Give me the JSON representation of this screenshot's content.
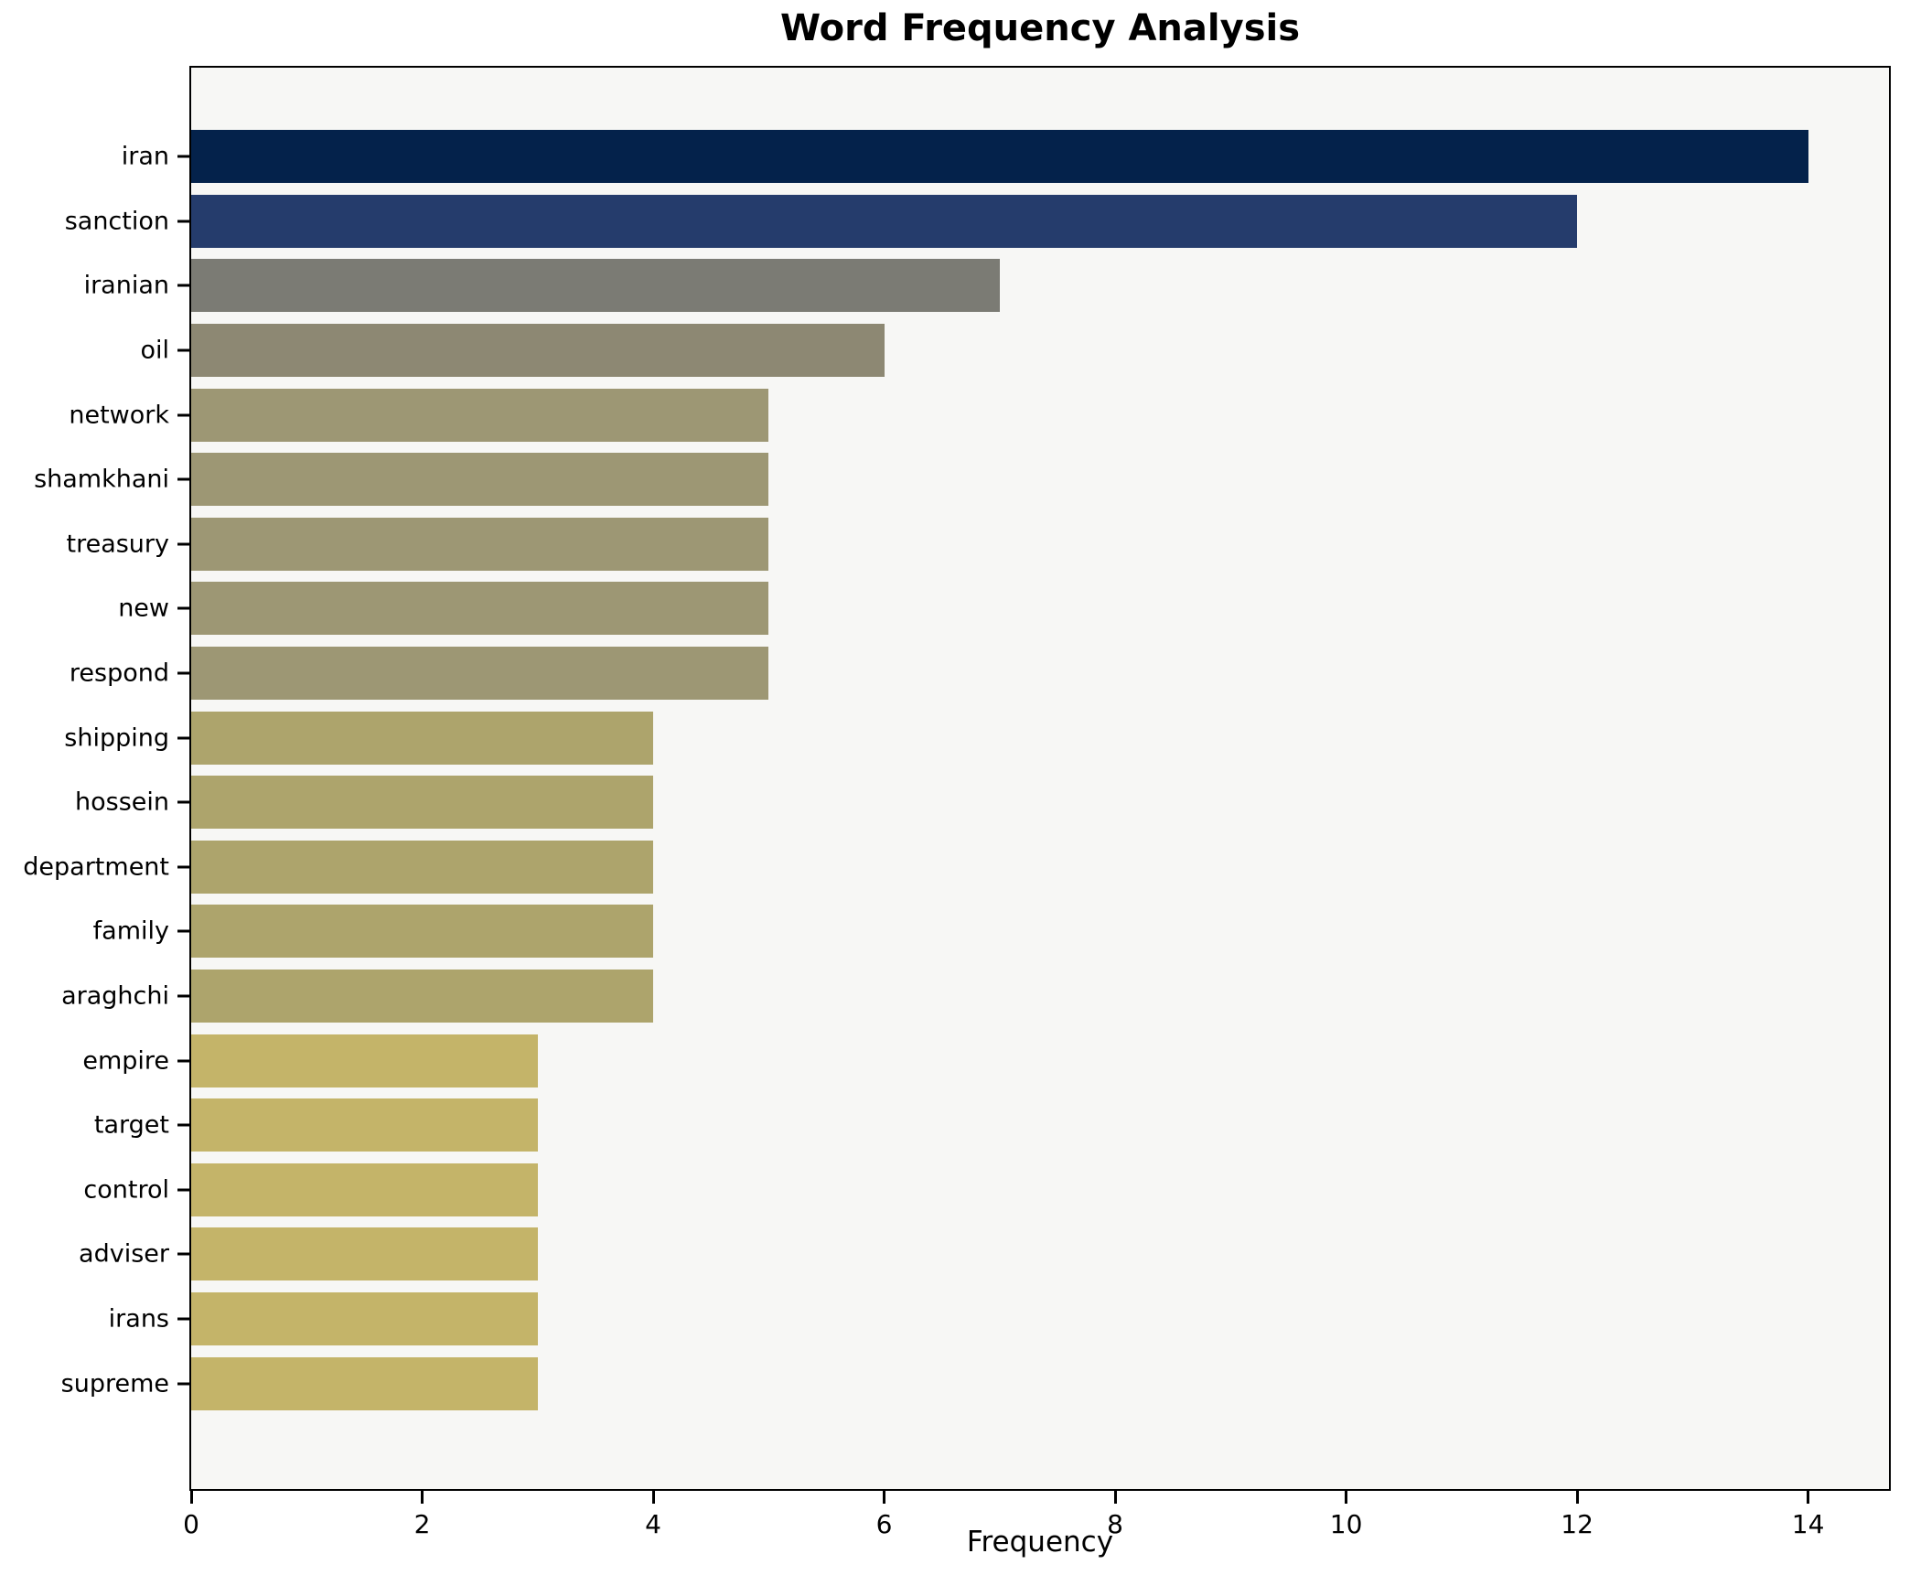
{
  "chart_data": {
    "type": "bar",
    "orientation": "horizontal",
    "title": "Word Frequency Analysis",
    "xlabel": "Frequency",
    "ylabel": "",
    "categories": [
      "iran",
      "sanction",
      "iranian",
      "oil",
      "network",
      "shamkhani",
      "treasury",
      "new",
      "respond",
      "shipping",
      "hossein",
      "department",
      "family",
      "araghchi",
      "empire",
      "target",
      "control",
      "adviser",
      "irans",
      "supreme"
    ],
    "values": [
      14,
      12,
      7,
      6,
      5,
      5,
      5,
      5,
      5,
      4,
      4,
      4,
      4,
      4,
      3,
      3,
      3,
      3,
      3,
      3
    ],
    "bar_colors": [
      "#04224b",
      "#253c6c",
      "#7b7b74",
      "#8d8873",
      "#9d9774",
      "#9d9774",
      "#9d9774",
      "#9d9774",
      "#9d9774",
      "#ada46c",
      "#ada46c",
      "#ada46c",
      "#ada46c",
      "#ada46c",
      "#c4b469",
      "#c4b469",
      "#c4b469",
      "#c4b469",
      "#c4b469",
      "#c4b469"
    ],
    "x_ticks": [
      0,
      2,
      4,
      6,
      8,
      10,
      12,
      14
    ],
    "xlim": [
      0,
      14.7
    ],
    "grid": false,
    "legend_position": "none",
    "plot_bg": "#f7f7f5",
    "figure_bg": "#ffffff",
    "spine_color": "#000000",
    "bar_height_fraction": 0.8
  }
}
